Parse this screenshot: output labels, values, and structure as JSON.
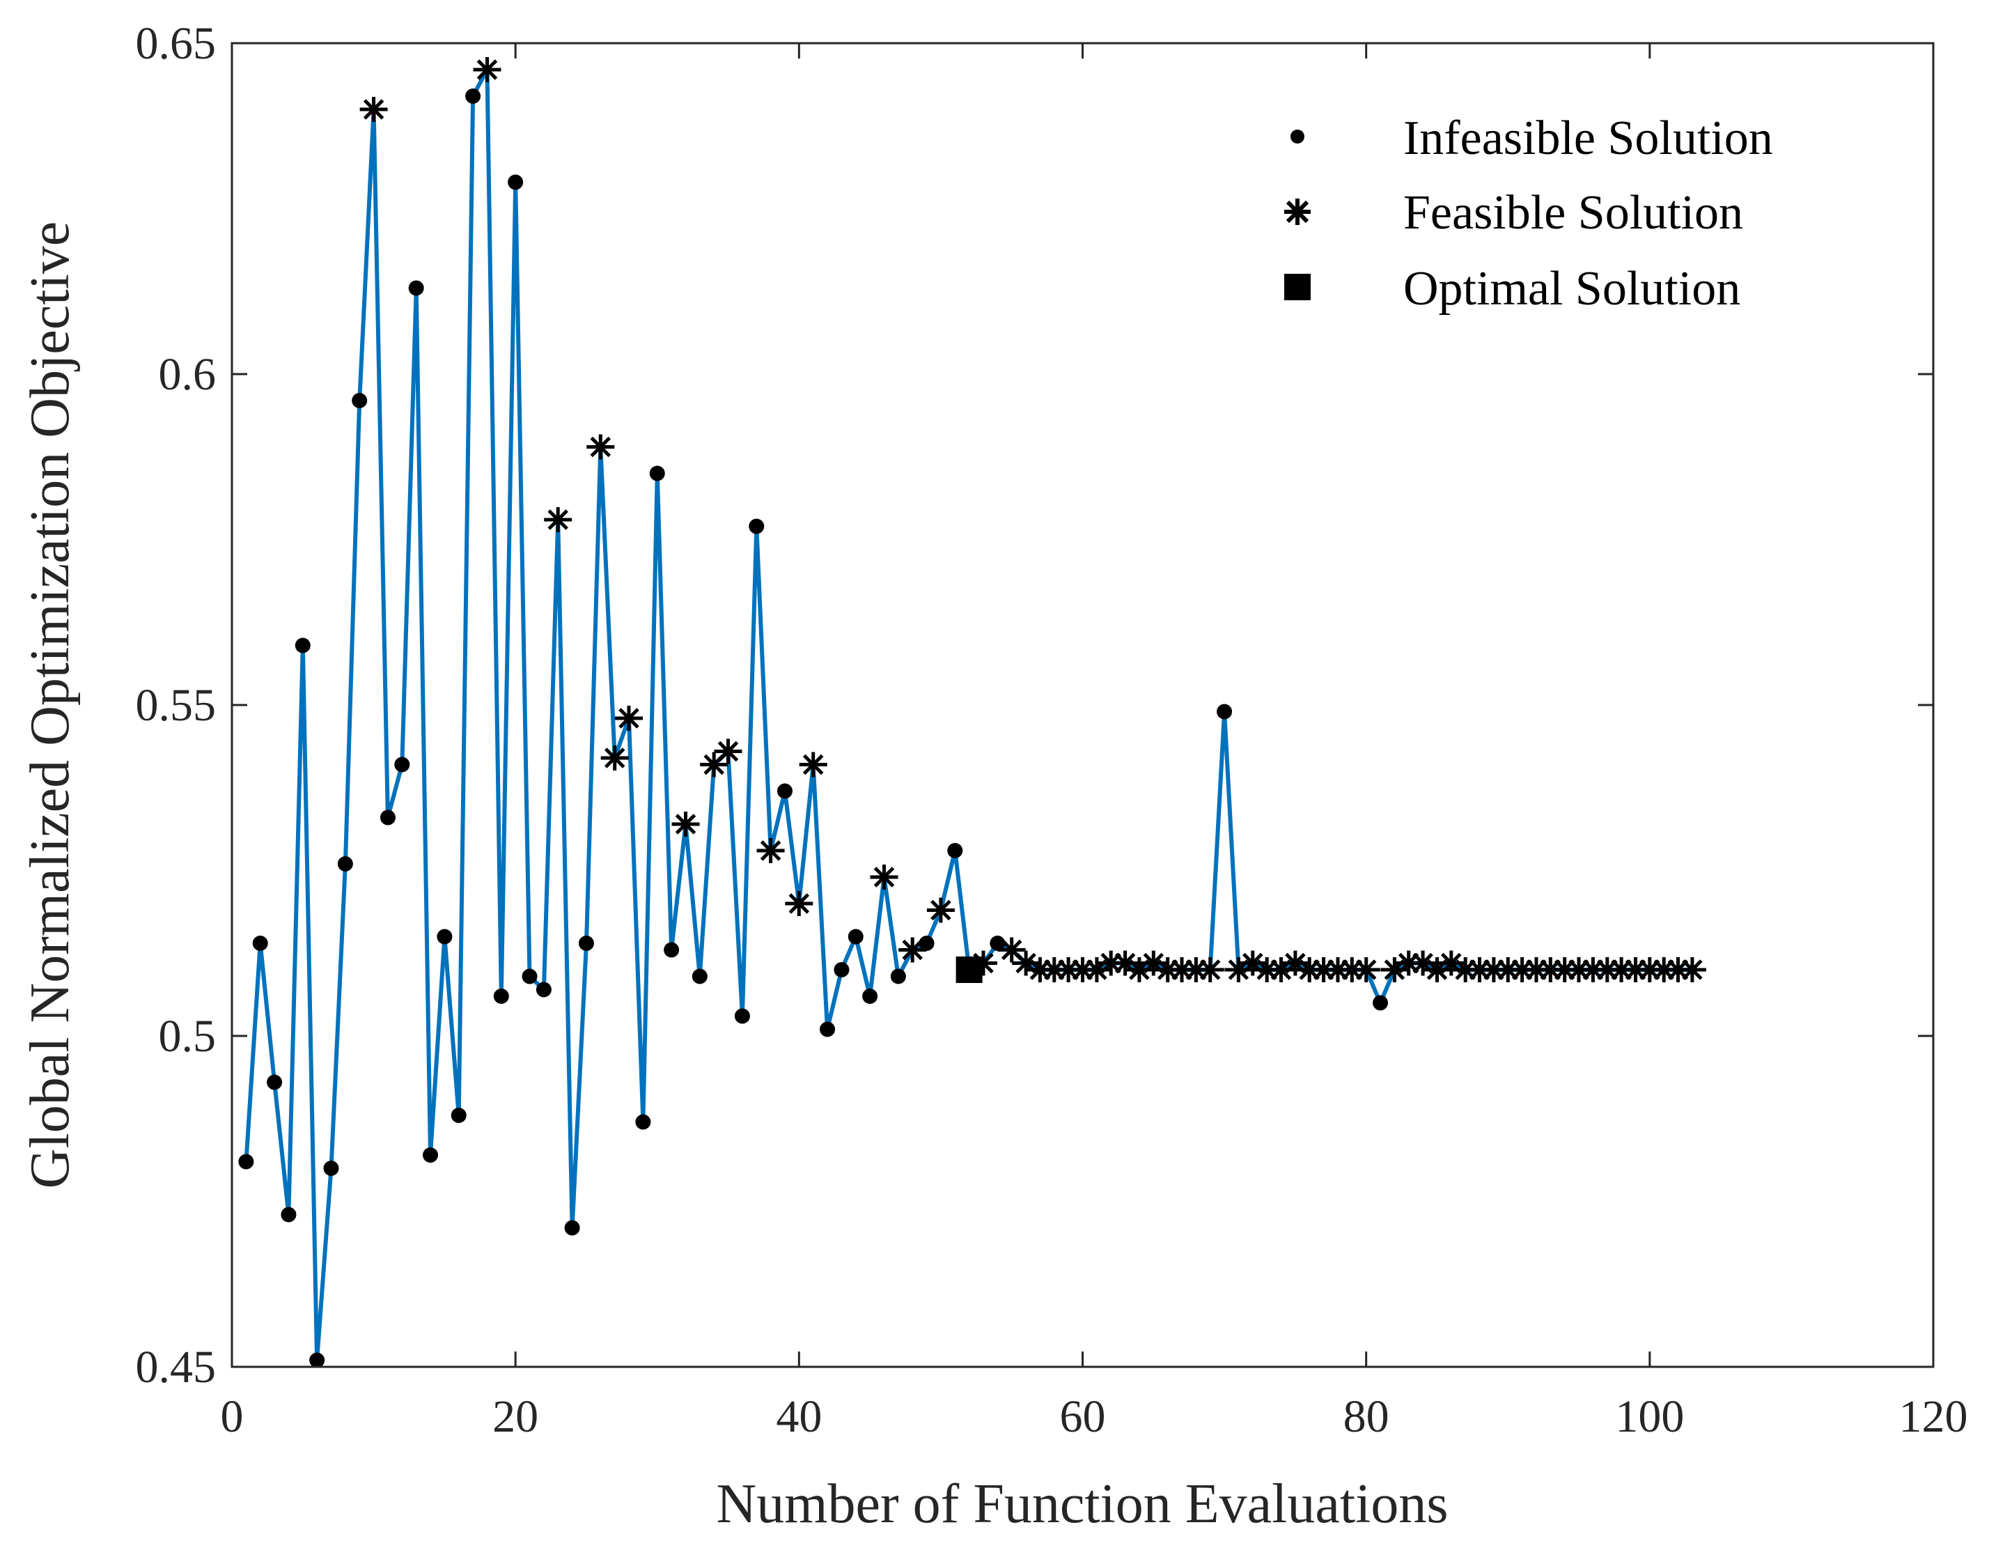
{
  "chart_data": {
    "type": "scatter",
    "xlabel": "Number of Function Evaluations",
    "ylabel": "Global Normalized Optimization Objective",
    "xlim": [
      0,
      120
    ],
    "ylim": [
      0.45,
      0.65
    ],
    "xticks": [
      "0",
      "20",
      "40",
      "60",
      "80",
      "100",
      "120"
    ],
    "yticks": [
      "0.45",
      "0.5",
      "0.55",
      "0.6",
      "0.65"
    ],
    "grid": false,
    "legend_position": "top-right",
    "line_color": "#0072BD",
    "marker_color": "#000000",
    "legend": [
      {
        "label": "Infeasible Solution",
        "marker": "dot"
      },
      {
        "label": "Feasible Solution",
        "marker": "asterisk"
      },
      {
        "label": "Optimal Solution",
        "marker": "square"
      }
    ],
    "series": [
      {
        "kind": "line",
        "x": [
          1,
          2,
          3,
          4,
          5,
          6,
          7,
          8,
          9,
          10,
          11,
          12,
          13,
          14,
          15,
          16,
          17,
          18,
          19,
          20,
          21,
          22,
          23,
          24,
          25,
          26,
          27,
          28,
          29,
          30,
          31,
          32,
          33,
          34,
          35,
          36,
          37,
          38,
          39,
          40,
          41,
          42,
          43,
          44,
          45,
          46,
          47,
          48,
          49,
          50,
          51,
          52,
          53,
          54,
          55,
          56,
          57,
          58,
          59,
          60,
          61,
          62,
          63,
          64,
          65,
          66,
          67,
          68,
          69,
          70,
          71,
          72,
          73,
          74,
          75,
          76,
          77,
          78,
          79,
          80,
          81,
          82,
          83,
          84,
          85,
          86,
          87,
          88,
          89,
          90,
          91,
          92,
          93,
          94,
          95,
          96,
          97,
          98,
          99,
          100,
          101,
          102,
          103
        ],
        "y": [
          0.481,
          0.514,
          0.493,
          0.473,
          0.559,
          0.451,
          0.48,
          0.526,
          0.596,
          0.64,
          0.533,
          0.541,
          0.613,
          0.482,
          0.515,
          0.488,
          0.642,
          0.646,
          0.506,
          0.629,
          0.509,
          0.507,
          0.578,
          0.471,
          0.514,
          0.589,
          0.542,
          0.548,
          0.487,
          0.585,
          0.513,
          0.532,
          0.509,
          0.541,
          0.543,
          0.503,
          0.577,
          0.528,
          0.537,
          0.52,
          0.541,
          0.501,
          0.51,
          0.515,
          0.506,
          0.524,
          0.509,
          0.513,
          0.514,
          0.519,
          0.528,
          0.51,
          0.511,
          0.514,
          0.513,
          0.511,
          0.51,
          0.51,
          0.51,
          0.51,
          0.51,
          0.511,
          0.511,
          0.51,
          0.511,
          0.51,
          0.51,
          0.51,
          0.51,
          0.549,
          0.51,
          0.511,
          0.51,
          0.51,
          0.511,
          0.51,
          0.51,
          0.51,
          0.51,
          0.51,
          0.505,
          0.51,
          0.511,
          0.511,
          0.51,
          0.511,
          0.51,
          0.51,
          0.51,
          0.51,
          0.51,
          0.51,
          0.51,
          0.51,
          0.51,
          0.51,
          0.51,
          0.51,
          0.51,
          0.51,
          0.51,
          0.51,
          0.51
        ]
      },
      {
        "kind": "infeasible",
        "x": [
          1,
          2,
          3,
          4,
          5,
          6,
          7,
          8,
          9,
          11,
          12,
          13,
          14,
          15,
          16,
          17,
          19,
          20,
          21,
          22,
          24,
          25,
          29,
          30,
          31,
          33,
          36,
          37,
          39,
          42,
          43,
          44,
          45,
          47,
          49,
          51,
          54,
          70,
          81
        ],
        "y": [
          0.481,
          0.514,
          0.493,
          0.473,
          0.559,
          0.451,
          0.48,
          0.526,
          0.596,
          0.533,
          0.541,
          0.613,
          0.482,
          0.515,
          0.488,
          0.642,
          0.506,
          0.629,
          0.509,
          0.507,
          0.471,
          0.514,
          0.487,
          0.585,
          0.513,
          0.509,
          0.503,
          0.577,
          0.537,
          0.501,
          0.51,
          0.515,
          0.506,
          0.509,
          0.514,
          0.528,
          0.514,
          0.549,
          0.505
        ]
      },
      {
        "kind": "feasible",
        "x": [
          10,
          18,
          23,
          26,
          27,
          28,
          32,
          34,
          35,
          38,
          40,
          41,
          46,
          48,
          50,
          53,
          55,
          56,
          57,
          58,
          59,
          60,
          61,
          62,
          63,
          64,
          65,
          66,
          67,
          68,
          69,
          71,
          72,
          73,
          74,
          75,
          76,
          77,
          78,
          79,
          80,
          82,
          83,
          84,
          85,
          86,
          87,
          88,
          89,
          90,
          91,
          92,
          93,
          94,
          95,
          96,
          97,
          98,
          99,
          100,
          101,
          102,
          103
        ],
        "y": [
          0.64,
          0.646,
          0.578,
          0.589,
          0.542,
          0.548,
          0.532,
          0.541,
          0.543,
          0.528,
          0.52,
          0.541,
          0.524,
          0.513,
          0.519,
          0.511,
          0.513,
          0.511,
          0.51,
          0.51,
          0.51,
          0.51,
          0.51,
          0.511,
          0.511,
          0.51,
          0.511,
          0.51,
          0.51,
          0.51,
          0.51,
          0.51,
          0.511,
          0.51,
          0.51,
          0.511,
          0.51,
          0.51,
          0.51,
          0.51,
          0.51,
          0.51,
          0.511,
          0.511,
          0.51,
          0.511,
          0.51,
          0.51,
          0.51,
          0.51,
          0.51,
          0.51,
          0.51,
          0.51,
          0.51,
          0.51,
          0.51,
          0.51,
          0.51,
          0.51,
          0.51,
          0.51,
          0.51
        ]
      },
      {
        "kind": "optimal",
        "x": [
          52
        ],
        "y": [
          0.51
        ]
      }
    ]
  }
}
